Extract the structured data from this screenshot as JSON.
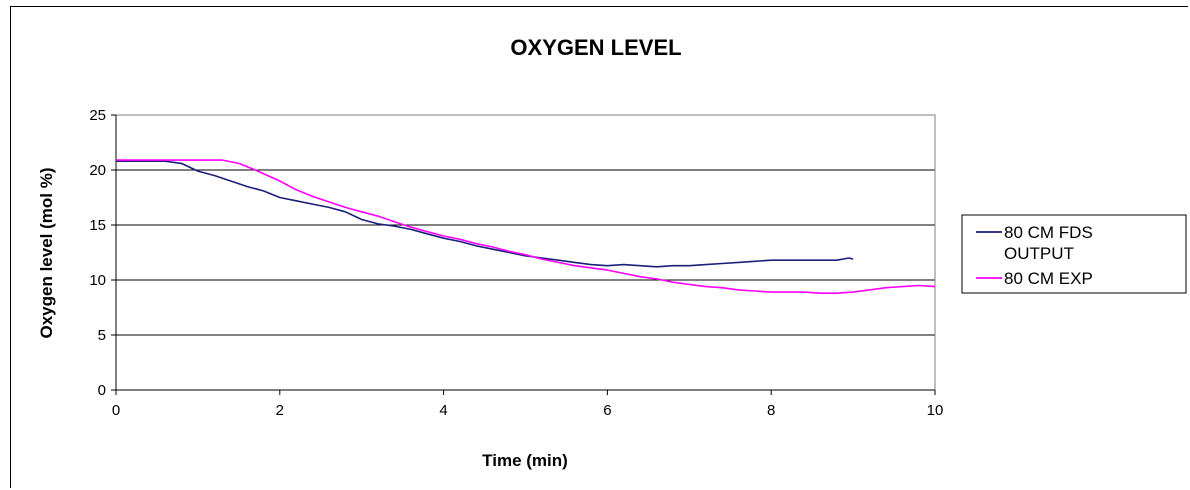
{
  "chart_data": {
    "type": "line",
    "title": "OXYGEN LEVEL",
    "xlabel": "Time (min)",
    "ylabel": "Oxygen level (mol %)",
    "xlim": [
      0,
      10
    ],
    "ylim": [
      0,
      25
    ],
    "xticks": [
      0,
      2,
      4,
      6,
      8,
      10
    ],
    "yticks": [
      0,
      5,
      10,
      15,
      20,
      25
    ],
    "grid": "horizontal",
    "legend": "right",
    "series": [
      {
        "name": "80 CM FDS OUTPUT",
        "color": "#1a1f7a",
        "x": [
          0,
          0.3,
          0.6,
          0.8,
          1.0,
          1.2,
          1.4,
          1.6,
          1.8,
          2.0,
          2.2,
          2.4,
          2.6,
          2.8,
          3.0,
          3.2,
          3.4,
          3.6,
          3.8,
          4.0,
          4.2,
          4.4,
          4.6,
          4.8,
          5.0,
          5.2,
          5.4,
          5.6,
          5.8,
          6.0,
          6.2,
          6.4,
          6.6,
          6.8,
          7.0,
          7.2,
          7.4,
          7.6,
          7.8,
          8.0,
          8.2,
          8.4,
          8.6,
          8.8,
          8.95,
          9.0
        ],
        "y": [
          20.8,
          20.8,
          20.8,
          20.6,
          19.9,
          19.5,
          19.0,
          18.5,
          18.1,
          17.5,
          17.2,
          16.9,
          16.6,
          16.2,
          15.5,
          15.1,
          14.9,
          14.6,
          14.2,
          13.8,
          13.5,
          13.1,
          12.8,
          12.5,
          12.2,
          12.0,
          11.8,
          11.6,
          11.4,
          11.3,
          11.4,
          11.3,
          11.2,
          11.3,
          11.3,
          11.4,
          11.5,
          11.6,
          11.7,
          11.8,
          11.8,
          11.8,
          11.8,
          11.8,
          12.0,
          11.9
        ]
      },
      {
        "name": "80 CM EXP",
        "color": "#ff00ff",
        "x": [
          0,
          0.5,
          1.0,
          1.3,
          1.5,
          1.7,
          2.0,
          2.2,
          2.4,
          2.6,
          2.8,
          3.0,
          3.2,
          3.4,
          3.6,
          3.8,
          4.0,
          4.2,
          4.4,
          4.6,
          4.8,
          5.0,
          5.2,
          5.4,
          5.6,
          5.8,
          6.0,
          6.2,
          6.4,
          6.6,
          6.8,
          7.0,
          7.2,
          7.4,
          7.6,
          7.8,
          8.0,
          8.2,
          8.4,
          8.6,
          8.8,
          9.0,
          9.2,
          9.4,
          9.6,
          9.8,
          10.0
        ],
        "y": [
          20.9,
          20.9,
          20.9,
          20.9,
          20.6,
          20.0,
          19.0,
          18.2,
          17.6,
          17.1,
          16.6,
          16.2,
          15.8,
          15.3,
          14.8,
          14.4,
          14.0,
          13.7,
          13.3,
          13.0,
          12.6,
          12.3,
          11.9,
          11.6,
          11.3,
          11.1,
          10.9,
          10.6,
          10.3,
          10.1,
          9.8,
          9.6,
          9.4,
          9.3,
          9.1,
          9.0,
          8.9,
          8.9,
          8.9,
          8.8,
          8.8,
          8.9,
          9.1,
          9.3,
          9.4,
          9.5,
          9.4
        ]
      }
    ]
  }
}
